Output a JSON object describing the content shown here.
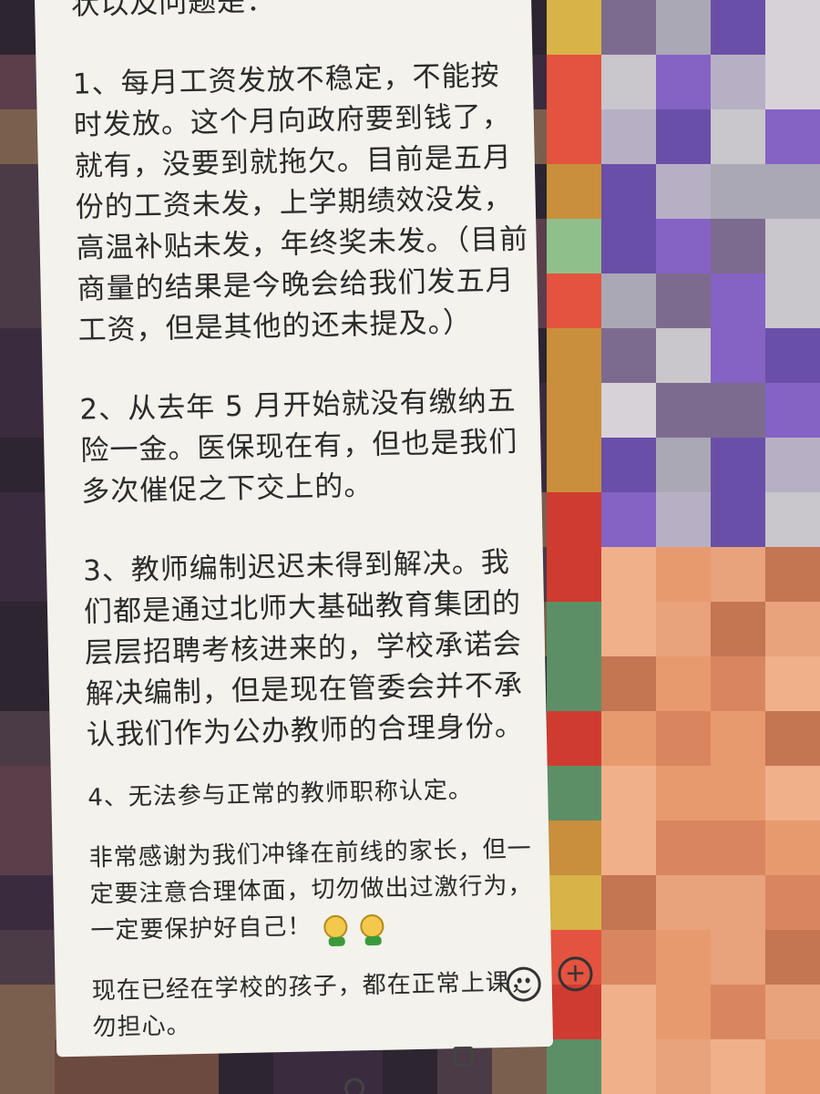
{
  "chat": {
    "intro": "状以及问题是：",
    "item1": "1、每月工资发放不稳定，不能按时发放。这个月向政府要到钱了，就有，没要到就拖欠。目前是五月份的工资未发，上学期绩效没发，高温补贴未发，年终奖未发。（目前商量的结果是今晚会给我们发五月工资，但是其他的还未提及。）",
    "item2": "2、从去年 5 月开始就没有缴纳五险一金。医保现在有，但也是我们多次催促之下交上的。",
    "item3": "3、教师编制迟迟未得到解决。我们都是通过北师大基础教育集团的层层招聘考核进来的，学校承诺会解决编制，但是现在管委会并不承认我们作为公办教师的合理身份。",
    "item4": "4、无法参与正常的教师职称认定。",
    "thanks": "非常感谢为我们冲锋在前线的家长，但一定要注意合理体面，切勿做出过激行为，一定要保护好自己！",
    "children": "现在已经在学校的孩子，都在正常上课，勿担心。"
  },
  "toolbar": {
    "plus_symbol": "+",
    "emoji_icon": "smiley-icon"
  }
}
